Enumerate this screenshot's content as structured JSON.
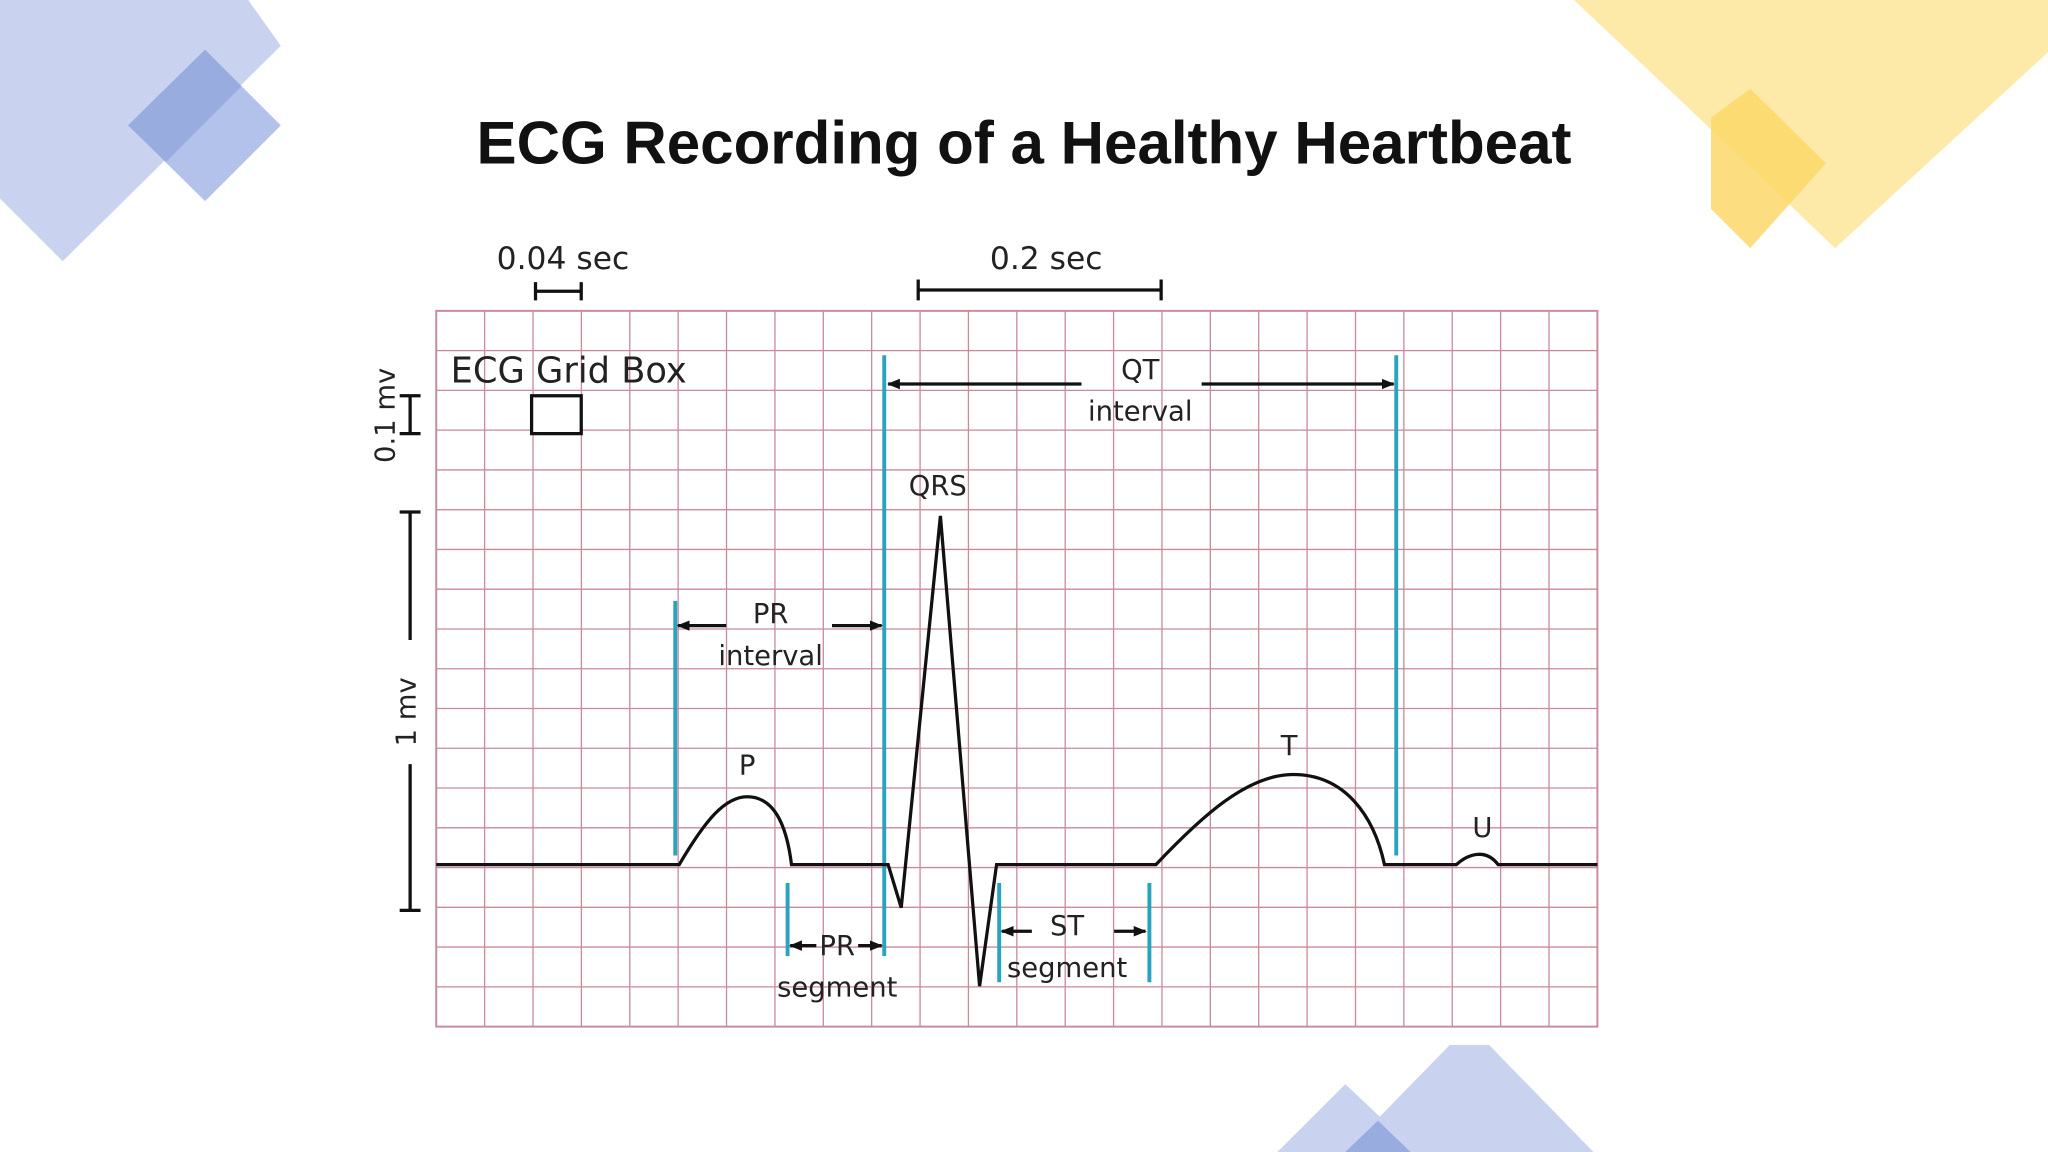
{
  "title": "ECG Recording of a Healthy Heartbeat",
  "scale_bars": {
    "time_small": "0.04 sec",
    "time_large": "0.2 sec",
    "voltage_small": "0.1 mv",
    "voltage_large": "1 mv"
  },
  "grid_box_label": "ECG Grid Box",
  "intervals": {
    "qt": {
      "name": "QT",
      "kind": "interval"
    },
    "pr": {
      "name": "PR",
      "kind": "interval"
    },
    "pr_segment": {
      "name": "PR",
      "kind": "segment"
    },
    "st_segment": {
      "name": "ST",
      "kind": "segment"
    }
  },
  "waves": {
    "p": "P",
    "qrs": "QRS",
    "t": "T",
    "u": "U"
  }
}
